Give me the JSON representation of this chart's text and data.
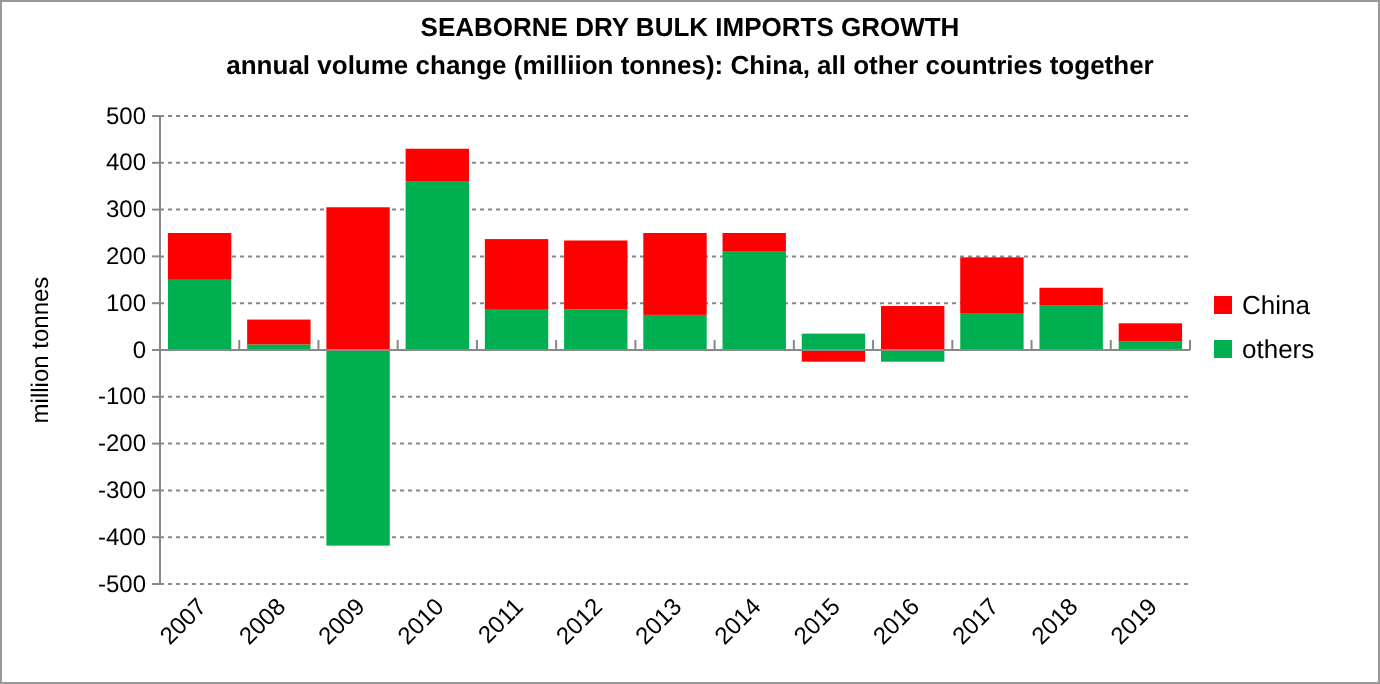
{
  "chart_data": {
    "type": "bar",
    "title": "SEABORNE DRY BULK IMPORTS GROWTH",
    "subtitle": "annual volume change (milliion tonnes): China, all other countries together",
    "ylabel": "million tonnes",
    "categories": [
      "2007",
      "2008",
      "2009",
      "2010",
      "2011",
      "2012",
      "2013",
      "2014",
      "2015",
      "2016",
      "2017",
      "2018",
      "2019"
    ],
    "series": [
      {
        "name": "others",
        "color": "#00b050",
        "values": [
          150,
          12,
          -418,
          361,
          86,
          87,
          75,
          210,
          35,
          -25,
          79,
          96,
          18
        ]
      },
      {
        "name": "China",
        "color": "#ff0000",
        "values": [
          100,
          53,
          305,
          69,
          151,
          147,
          175,
          40,
          -25,
          94,
          119,
          37,
          39
        ]
      }
    ],
    "stacked": true,
    "ylim": [
      -500,
      500
    ],
    "yticks": [
      -500,
      -400,
      -300,
      -200,
      -100,
      0,
      100,
      200,
      300,
      400,
      500
    ],
    "grid": "y",
    "legend": "right"
  }
}
